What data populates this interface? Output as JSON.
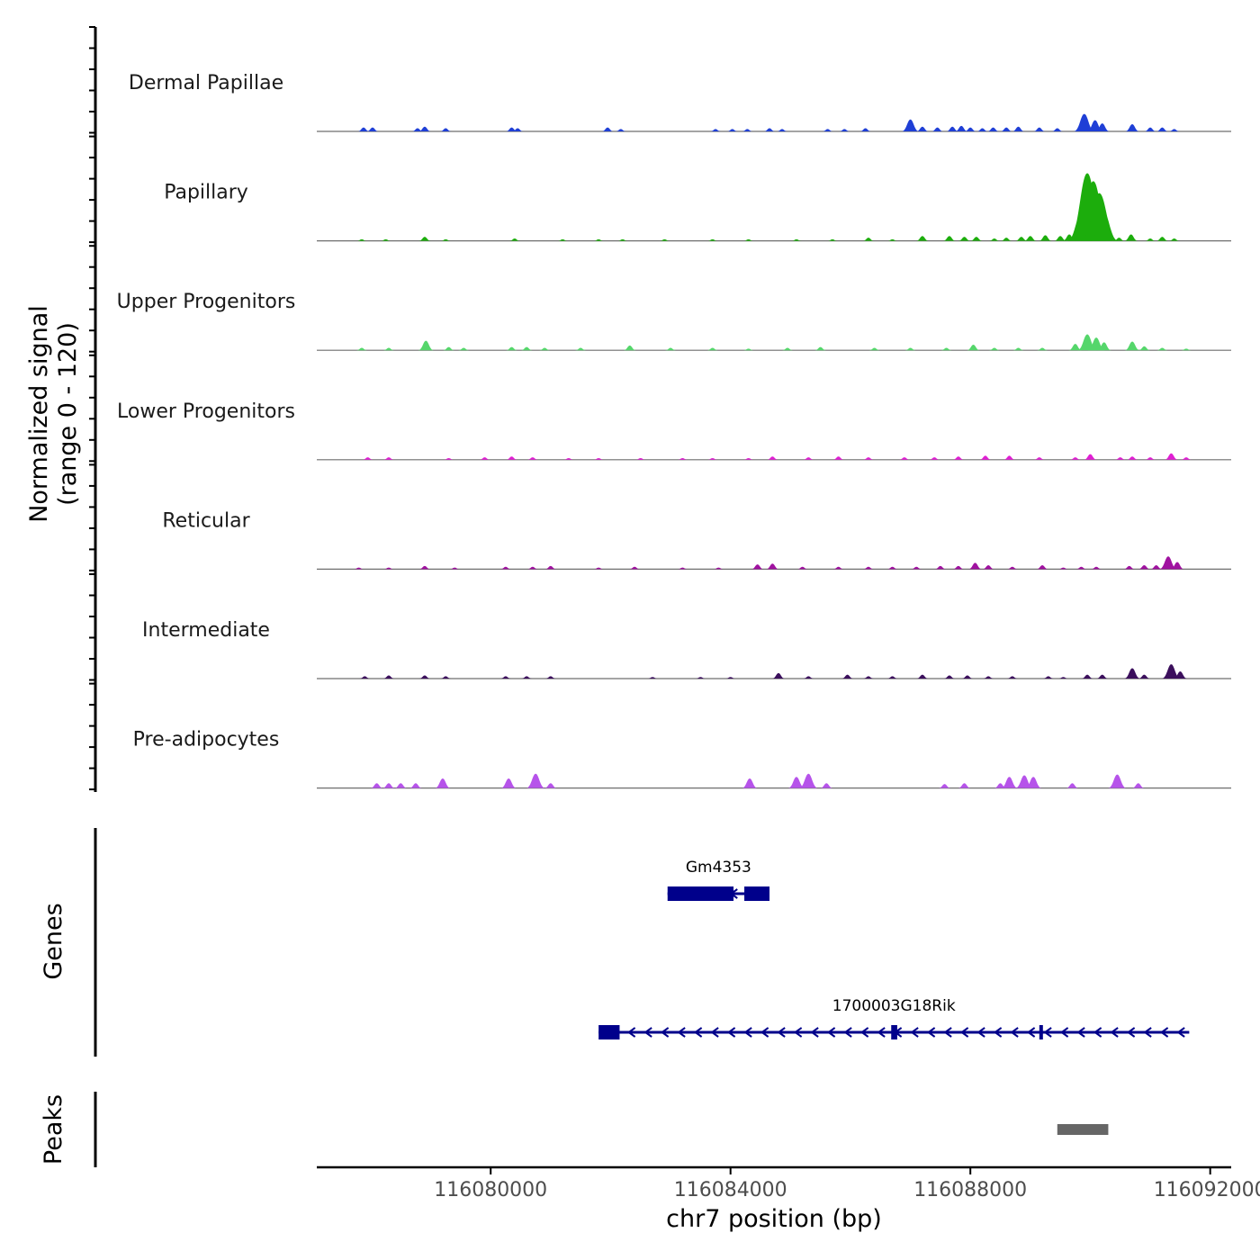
{
  "chart_data": {
    "type": "area",
    "title": "",
    "ylabel": "Normalized signal",
    "ylabel_range": "(range 0 - 120)",
    "ylim": [
      0,
      120
    ],
    "xlabel": "chr7 position (bp)",
    "xlim": [
      116077100,
      116092350
    ],
    "x_ticks": [
      116080000,
      116084000,
      116088000,
      116092000
    ],
    "x_tick_labels": [
      "116080000",
      "116084000",
      "116088000",
      "116092000"
    ],
    "tracks": [
      {
        "name": "Dermal Papillae",
        "color": "#1f3fd6",
        "peaks": [
          [
            116077880,
            5
          ],
          [
            116078030,
            5
          ],
          [
            116078780,
            4
          ],
          [
            116078900,
            6
          ],
          [
            116079250,
            4
          ],
          [
            116080350,
            5
          ],
          [
            116080450,
            4
          ],
          [
            116081950,
            5
          ],
          [
            116082170,
            3
          ],
          [
            116083750,
            3
          ],
          [
            116084030,
            3
          ],
          [
            116084280,
            3
          ],
          [
            116084650,
            4
          ],
          [
            116084860,
            3
          ],
          [
            116085620,
            3
          ],
          [
            116085900,
            3
          ],
          [
            116086250,
            4
          ],
          [
            116087000,
            15
          ],
          [
            116087200,
            6
          ],
          [
            116087450,
            5
          ],
          [
            116087700,
            6
          ],
          [
            116087850,
            7
          ],
          [
            116088000,
            5
          ],
          [
            116088200,
            4
          ],
          [
            116088380,
            5
          ],
          [
            116088600,
            5
          ],
          [
            116088800,
            6
          ],
          [
            116089150,
            5
          ],
          [
            116089450,
            4
          ],
          [
            116089900,
            22
          ],
          [
            116090080,
            14
          ],
          [
            116090200,
            10
          ],
          [
            116090700,
            9
          ],
          [
            116091000,
            5
          ],
          [
            116091200,
            5
          ],
          [
            116091400,
            3
          ]
        ]
      },
      {
        "name": "Papillary",
        "color": "#1cad0c",
        "peaks": [
          [
            116077850,
            2
          ],
          [
            116078250,
            2
          ],
          [
            116078900,
            5
          ],
          [
            116079250,
            2
          ],
          [
            116080400,
            3
          ],
          [
            116081200,
            2
          ],
          [
            116081800,
            2
          ],
          [
            116082200,
            2
          ],
          [
            116082900,
            2
          ],
          [
            116083700,
            2
          ],
          [
            116084300,
            2
          ],
          [
            116085100,
            2
          ],
          [
            116085700,
            2
          ],
          [
            116086300,
            4
          ],
          [
            116086700,
            2
          ],
          [
            116087200,
            6
          ],
          [
            116087650,
            6
          ],
          [
            116087900,
            5
          ],
          [
            116088100,
            5
          ],
          [
            116088400,
            3
          ],
          [
            116088600,
            4
          ],
          [
            116088850,
            5
          ],
          [
            116089000,
            6
          ],
          [
            116089250,
            7
          ],
          [
            116089500,
            6
          ],
          [
            116089650,
            8
          ],
          [
            116089830,
            30
          ],
          [
            116089950,
            85
          ],
          [
            116090050,
            75
          ],
          [
            116090150,
            60
          ],
          [
            116090230,
            35
          ],
          [
            116090480,
            4
          ],
          [
            116090680,
            8
          ],
          [
            116091000,
            3
          ],
          [
            116091200,
            5
          ],
          [
            116091400,
            3
          ]
        ]
      },
      {
        "name": "Upper Progenitors",
        "color": "#55d66b",
        "peaks": [
          [
            116077850,
            3
          ],
          [
            116078300,
            3
          ],
          [
            116078920,
            12
          ],
          [
            116079300,
            4
          ],
          [
            116079550,
            3
          ],
          [
            116080350,
            4
          ],
          [
            116080600,
            4
          ],
          [
            116080900,
            3
          ],
          [
            116081500,
            3
          ],
          [
            116082320,
            6
          ],
          [
            116083000,
            3
          ],
          [
            116083700,
            3
          ],
          [
            116084300,
            2
          ],
          [
            116084950,
            3
          ],
          [
            116085500,
            4
          ],
          [
            116086400,
            3
          ],
          [
            116087000,
            3
          ],
          [
            116087600,
            3
          ],
          [
            116088050,
            7
          ],
          [
            116088400,
            3
          ],
          [
            116088800,
            3
          ],
          [
            116089200,
            3
          ],
          [
            116089750,
            8
          ],
          [
            116089950,
            20
          ],
          [
            116090100,
            16
          ],
          [
            116090230,
            10
          ],
          [
            116090700,
            11
          ],
          [
            116090900,
            5
          ],
          [
            116091200,
            3
          ],
          [
            116091600,
            2
          ]
        ]
      },
      {
        "name": "Lower Progenitors",
        "color": "#e01fd3",
        "peaks": [
          [
            116077950,
            3
          ],
          [
            116078300,
            3
          ],
          [
            116079300,
            2
          ],
          [
            116079900,
            3
          ],
          [
            116080350,
            4
          ],
          [
            116080700,
            3
          ],
          [
            116081300,
            2
          ],
          [
            116081800,
            2
          ],
          [
            116082500,
            2
          ],
          [
            116083200,
            2
          ],
          [
            116083700,
            2
          ],
          [
            116084300,
            2
          ],
          [
            116084700,
            4
          ],
          [
            116085300,
            3
          ],
          [
            116085800,
            4
          ],
          [
            116086300,
            3
          ],
          [
            116086900,
            3
          ],
          [
            116087400,
            3
          ],
          [
            116087800,
            4
          ],
          [
            116088250,
            5
          ],
          [
            116088650,
            5
          ],
          [
            116089150,
            3
          ],
          [
            116089750,
            3
          ],
          [
            116090000,
            7
          ],
          [
            116090500,
            3
          ],
          [
            116090700,
            4
          ],
          [
            116091000,
            3
          ],
          [
            116091350,
            8
          ],
          [
            116091600,
            3
          ]
        ]
      },
      {
        "name": "Reticular",
        "color": "#a012a0",
        "peaks": [
          [
            116077800,
            2
          ],
          [
            116078300,
            2
          ],
          [
            116078900,
            4
          ],
          [
            116079400,
            2
          ],
          [
            116080250,
            3
          ],
          [
            116080700,
            3
          ],
          [
            116081000,
            4
          ],
          [
            116081800,
            2
          ],
          [
            116082400,
            3
          ],
          [
            116083200,
            2
          ],
          [
            116083800,
            2
          ],
          [
            116084450,
            6
          ],
          [
            116084700,
            7
          ],
          [
            116085200,
            3
          ],
          [
            116085800,
            3
          ],
          [
            116086300,
            3
          ],
          [
            116086700,
            3
          ],
          [
            116087100,
            3
          ],
          [
            116087500,
            4
          ],
          [
            116087800,
            4
          ],
          [
            116088080,
            8
          ],
          [
            116088300,
            5
          ],
          [
            116088700,
            3
          ],
          [
            116089200,
            5
          ],
          [
            116089550,
            2
          ],
          [
            116089850,
            3
          ],
          [
            116090100,
            3
          ],
          [
            116090650,
            4
          ],
          [
            116090900,
            5
          ],
          [
            116091100,
            5
          ],
          [
            116091300,
            16
          ],
          [
            116091450,
            9
          ]
        ]
      },
      {
        "name": "Intermediate",
        "color": "#3b0f5c",
        "peaks": [
          [
            116077900,
            3
          ],
          [
            116078300,
            4
          ],
          [
            116078900,
            4
          ],
          [
            116079250,
            3
          ],
          [
            116080250,
            3
          ],
          [
            116080600,
            3
          ],
          [
            116081000,
            3
          ],
          [
            116082700,
            2
          ],
          [
            116083500,
            2
          ],
          [
            116084000,
            2
          ],
          [
            116084800,
            7
          ],
          [
            116085300,
            3
          ],
          [
            116085950,
            5
          ],
          [
            116086300,
            3
          ],
          [
            116086700,
            3
          ],
          [
            116087200,
            5
          ],
          [
            116087650,
            4
          ],
          [
            116087950,
            4
          ],
          [
            116088300,
            3
          ],
          [
            116088700,
            3
          ],
          [
            116089300,
            3
          ],
          [
            116089550,
            2
          ],
          [
            116089950,
            5
          ],
          [
            116090200,
            5
          ],
          [
            116090700,
            13
          ],
          [
            116090900,
            5
          ],
          [
            116091350,
            18
          ],
          [
            116091500,
            9
          ]
        ]
      },
      {
        "name": "Pre-adipocytes",
        "color": "#b653ea",
        "peaks": [
          [
            116078100,
            6
          ],
          [
            116078300,
            6
          ],
          [
            116078500,
            6
          ],
          [
            116078750,
            6
          ],
          [
            116079200,
            12
          ],
          [
            116080300,
            12
          ],
          [
            116080750,
            18
          ],
          [
            116081000,
            6
          ],
          [
            116084320,
            12
          ],
          [
            116085100,
            14
          ],
          [
            116085300,
            18
          ],
          [
            116085600,
            6
          ],
          [
            116087570,
            5
          ],
          [
            116087900,
            6
          ],
          [
            116088500,
            6
          ],
          [
            116088650,
            14
          ],
          [
            116088900,
            16
          ],
          [
            116089050,
            14
          ],
          [
            116089700,
            6
          ],
          [
            116090450,
            17
          ],
          [
            116090800,
            6
          ]
        ]
      }
    ],
    "genes": [
      {
        "name": "Gm4353",
        "start": 116082950,
        "end": 116084650,
        "strand": "-",
        "exons": [
          [
            116082950,
            116084050
          ],
          [
            116084230,
            116084650
          ]
        ]
      },
      {
        "name": "1700003G18Rik",
        "start": 116081800,
        "end": 116091650,
        "strand": "-",
        "exons": [
          [
            116081800,
            116082150
          ],
          [
            116086680,
            116086780
          ],
          [
            116089150,
            116089200
          ]
        ]
      }
    ],
    "gene_track_label": "Genes",
    "peak_track_label": "Peaks",
    "peak_regions": [
      [
        116089450,
        116090300
      ]
    ]
  }
}
